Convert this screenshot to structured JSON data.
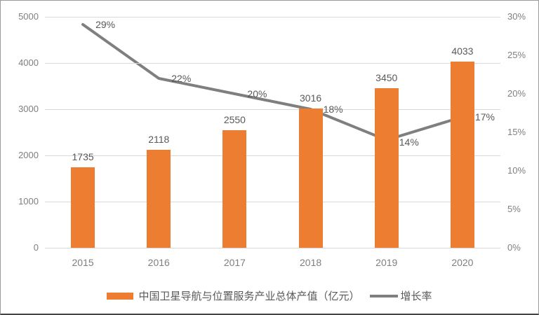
{
  "chart_data": {
    "type": "bar",
    "subtype": "bar-line-combo",
    "categories": [
      "2015",
      "2016",
      "2017",
      "2018",
      "2019",
      "2020"
    ],
    "series": [
      {
        "name": "中国卫星导航与位置服务产业总体产值（亿元）",
        "type": "bar",
        "axis": "left",
        "values": [
          1735,
          2118,
          2550,
          3016,
          3450,
          4033
        ],
        "color": "#ED7D31"
      },
      {
        "name": "增长率",
        "type": "line",
        "axis": "right",
        "values": [
          29,
          22,
          20,
          18,
          14,
          17
        ],
        "point_labels": [
          "29%",
          "22%",
          "20%",
          "18%",
          "14%",
          "17%"
        ],
        "color": "#7F7F7F"
      }
    ],
    "left_axis": {
      "min": 0,
      "max": 5000,
      "tick_labels": [
        "5000",
        "4000",
        "3000",
        "2000",
        "1000",
        "0"
      ]
    },
    "right_axis": {
      "min": 0,
      "max": 30,
      "tick_labels": [
        "30%",
        "25%",
        "20%",
        "15%",
        "10%",
        "5%",
        "0%"
      ]
    },
    "grid": true,
    "legend_position": "bottom"
  },
  "colors": {
    "bar": "#ED7D31",
    "line": "#7F7F7F",
    "grid": "#D9D9D9",
    "tick_text": "#7F7F7F",
    "label_text": "#595959",
    "background": "#FFFFFF"
  }
}
